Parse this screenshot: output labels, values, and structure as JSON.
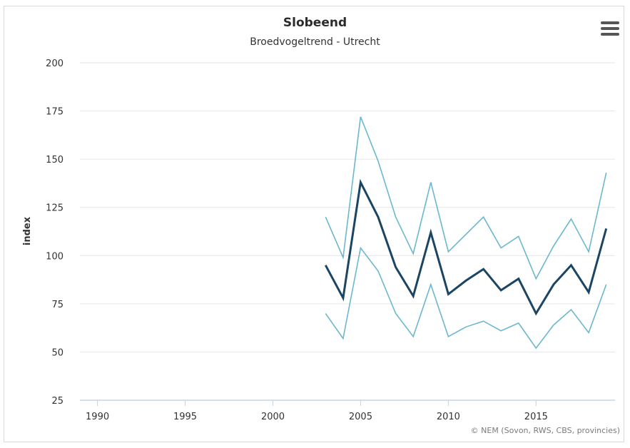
{
  "chart_data": {
    "type": "line",
    "title": "Slobeend",
    "subtitle": "Broedvogeltrend - Utrecht",
    "xlabel": "",
    "ylabel": "index",
    "xlim": [
      1989,
      2019.5
    ],
    "ylim": [
      25,
      200
    ],
    "xticks": [
      "1990",
      "1995",
      "2000",
      "2005",
      "2010",
      "2015"
    ],
    "yticks": [
      "25",
      "50",
      "75",
      "100",
      "125",
      "150",
      "175",
      "200"
    ],
    "x": [
      2003,
      2004,
      2005,
      2006,
      2007,
      2008,
      2009,
      2010,
      2011,
      2012,
      2013,
      2014,
      2015,
      2016,
      2017,
      2018,
      2019
    ],
    "grid": "horizontal",
    "legend": "none",
    "series": [
      {
        "role": "upper",
        "color": "#6bb7d0",
        "values": [
          120,
          99,
          172,
          149,
          120,
          101,
          138,
          102,
          111,
          120,
          104,
          110,
          88,
          105,
          119,
          102,
          143
        ]
      },
      {
        "role": "index",
        "color": "#1b4565",
        "values": [
          95,
          78,
          138,
          120,
          94,
          79,
          112,
          80,
          87,
          93,
          82,
          88,
          70,
          85,
          95,
          81,
          114
        ]
      },
      {
        "role": "lower",
        "color": "#6bb7d0",
        "values": [
          70,
          57,
          104,
          92,
          70,
          58,
          85,
          58,
          63,
          66,
          61,
          65,
          52,
          64,
          72,
          60,
          85
        ]
      }
    ]
  },
  "menu": {
    "icon": "hamburger-menu-icon"
  },
  "credit": "© NEM (Sovon, RWS, CBS, provincies)"
}
